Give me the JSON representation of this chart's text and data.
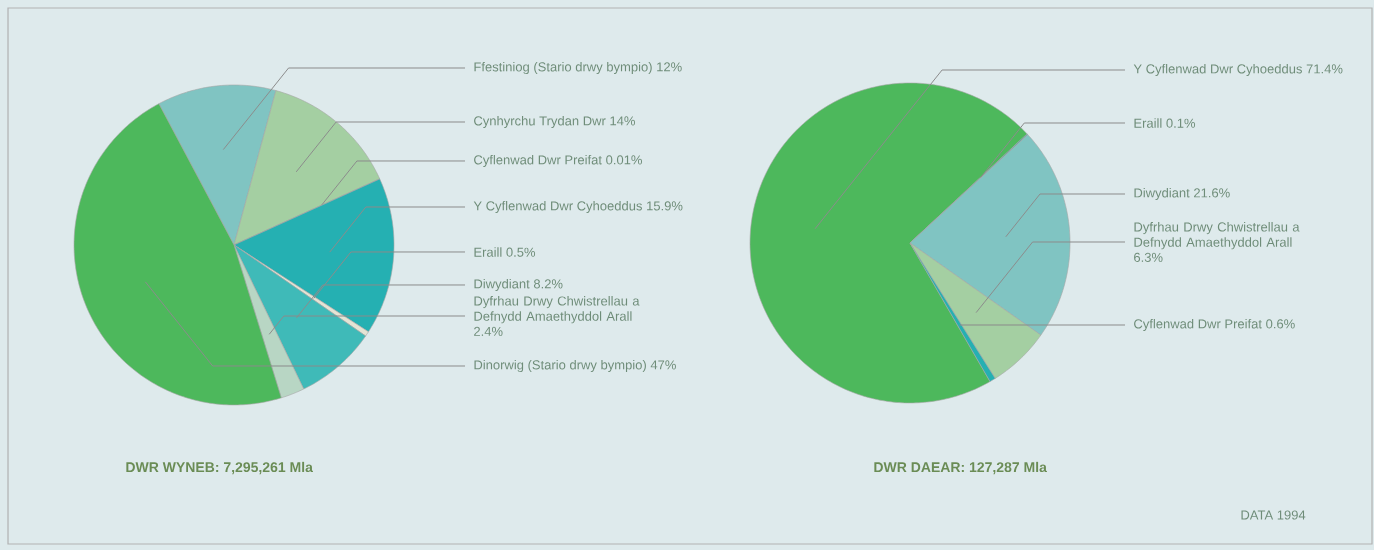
{
  "chart_data": [
    {
      "type": "pie",
      "title": "DWR WYNEB: 7,295,261 Mla",
      "categories": [
        "Ffestiniog (Stario drwy bympio)",
        "Cynhyrchu Trydan Dwr",
        "Cyflenwad Dwr Preifat",
        "Y Cyflenwad Dwr Cyhoeddus",
        "Eraill",
        "Diwydiant",
        "Dyfrhau Drwy Chwistrellau a Defnydd Amaethyddol Arall",
        "Dinorwig (Stario drwy bympio)"
      ],
      "values": [
        12,
        14,
        0.01,
        15.9,
        0.5,
        8.2,
        2.4,
        47
      ],
      "value_labels": [
        "12%",
        "14%",
        "0.01%",
        "15.9%",
        "0.5%",
        "8.2%",
        "2.4%",
        "47%"
      ],
      "colors": [
        "#80c4c2",
        "#a4cfa2",
        "#c8e0c8",
        "#25b0b2",
        "#e4e4d4",
        "#3fbab8",
        "#b8d6c4",
        "#4db85c"
      ]
    },
    {
      "type": "pie",
      "title": "DWR DAEAR: 127,287 Mla",
      "categories": [
        "Y Cyflenwad Dwr Cyhoeddus",
        "Eraill",
        "Diwydiant",
        "Dyfrhau Drwy Chwistrellau a Defnydd Amaethyddol Arall",
        "Cyflenwad Dwr Preifat"
      ],
      "values": [
        71.4,
        0.1,
        21.6,
        6.3,
        0.6
      ],
      "value_labels": [
        "71.4%",
        "0.1%",
        "21.6%",
        "6.3%",
        "0.6%"
      ],
      "colors": [
        "#4db85c",
        "#3a9aa0",
        "#80c4c2",
        "#a4cfa2",
        "#25b0b2"
      ],
      "annotations": [
        "DATA 1994"
      ]
    }
  ]
}
